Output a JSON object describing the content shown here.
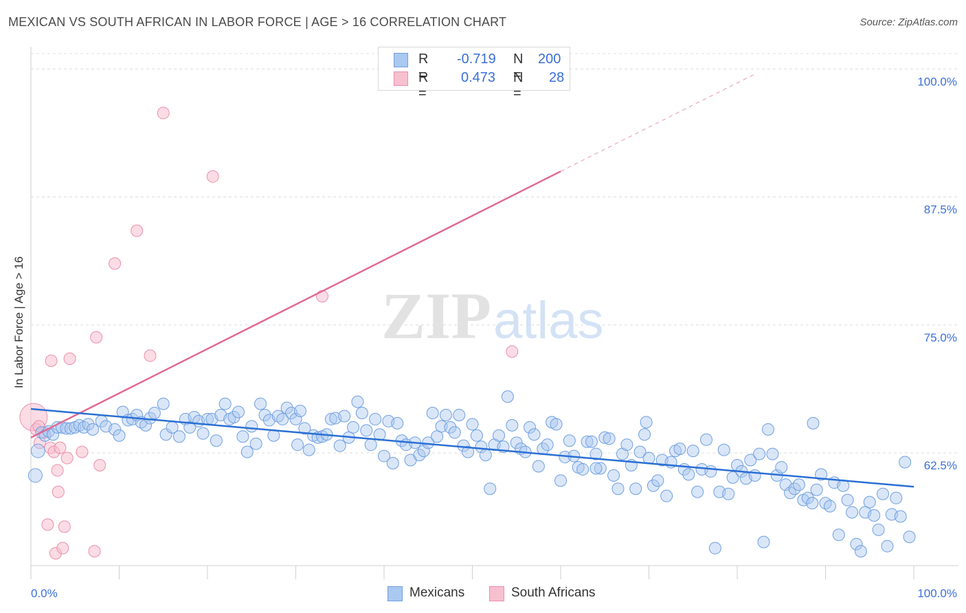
{
  "header": {
    "title": "MEXICAN VS SOUTH AFRICAN IN LABOR FORCE | AGE > 16 CORRELATION CHART",
    "source": "Source: ZipAtlas.com"
  },
  "legend": {
    "rows": [
      {
        "r_label": "R =",
        "r_value": "-0.719",
        "n_label": "N =",
        "n_value": "200"
      },
      {
        "r_label": "R =",
        "r_value": "0.473",
        "n_label": "N =",
        "n_value": "28"
      }
    ]
  },
  "bottom_legend": [
    "Mexicans",
    "South Africans"
  ],
  "colors": {
    "mexicans_fill": "#aac8f0",
    "mexicans_stroke": "#6f9fe0",
    "mexicans_line": "#2a6fd4",
    "south_africans_fill": "#f7c0d0",
    "south_africans_stroke": "#ea8fac",
    "south_africans_line": "#e06b94",
    "axis_label": "#3b6fd6",
    "grid": "#dcdcdc"
  },
  "chart_data": {
    "type": "scatter",
    "title": "MEXICAN VS SOUTH AFRICAN IN LABOR FORCE | AGE > 16 CORRELATION CHART",
    "xlabel": "",
    "ylabel": "In Labor Force | Age > 16",
    "xlim": [
      0,
      100
    ],
    "ylim": [
      51.5,
      101.5
    ],
    "x_tick_labels": [
      "0.0%",
      "100.0%"
    ],
    "y_ticks": [
      62.5,
      75.0,
      87.5,
      100.0
    ],
    "y_tick_labels": [
      "62.5%",
      "75.0%",
      "87.5%",
      "100.0%"
    ],
    "grid": true,
    "legend_position": "top-center",
    "watermark": "ZIPatlas",
    "series": [
      {
        "name": "Mexicans",
        "color": "#6f9fe0",
        "trend": {
          "x": [
            0,
            100
          ],
          "y": [
            66.8,
            59.2
          ]
        },
        "points": [
          [
            0.5,
            60.3
          ],
          [
            0.8,
            62.7
          ],
          [
            1.2,
            64.5
          ],
          [
            1.6,
            64.2
          ],
          [
            2.0,
            64.6
          ],
          [
            2.5,
            64.3
          ],
          [
            3.0,
            65.0
          ],
          [
            3.5,
            65.0
          ],
          [
            4.0,
            64.9
          ],
          [
            4.5,
            64.9
          ],
          [
            5.0,
            65.0
          ],
          [
            5.5,
            65.2
          ],
          [
            6.0,
            65.0
          ],
          [
            6.5,
            65.3
          ],
          [
            7.0,
            64.8
          ],
          [
            8.0,
            65.6
          ],
          [
            8.5,
            65.1
          ],
          [
            9.5,
            64.8
          ],
          [
            10.0,
            64.2
          ],
          [
            10.4,
            66.5
          ],
          [
            11.0,
            65.7
          ],
          [
            11.5,
            65.8
          ],
          [
            12.0,
            66.2
          ],
          [
            12.5,
            65.5
          ],
          [
            13.0,
            65.2
          ],
          [
            13.5,
            65.9
          ],
          [
            14.0,
            66.4
          ],
          [
            15.0,
            67.3
          ],
          [
            15.3,
            64.3
          ],
          [
            16.0,
            65.0
          ],
          [
            16.8,
            64.1
          ],
          [
            17.5,
            65.8
          ],
          [
            18.0,
            65.0
          ],
          [
            18.5,
            66.0
          ],
          [
            19.0,
            65.6
          ],
          [
            19.5,
            64.4
          ],
          [
            20.0,
            65.8
          ],
          [
            20.5,
            65.8
          ],
          [
            21.0,
            63.7
          ],
          [
            21.5,
            66.2
          ],
          [
            22.0,
            67.3
          ],
          [
            22.5,
            65.8
          ],
          [
            23.0,
            66.0
          ],
          [
            23.5,
            66.5
          ],
          [
            24.0,
            64.1
          ],
          [
            24.5,
            62.6
          ],
          [
            25.0,
            65.1
          ],
          [
            25.5,
            63.4
          ],
          [
            26.0,
            67.3
          ],
          [
            26.5,
            66.2
          ],
          [
            27.0,
            65.7
          ],
          [
            27.5,
            64.2
          ],
          [
            28.0,
            66.1
          ],
          [
            28.5,
            65.8
          ],
          [
            29.0,
            66.9
          ],
          [
            29.5,
            66.4
          ],
          [
            30.0,
            65.8
          ],
          [
            30.5,
            66.6
          ],
          [
            31.0,
            64.9
          ],
          [
            31.5,
            62.8
          ],
          [
            32.0,
            64.2
          ],
          [
            32.5,
            64.0
          ],
          [
            33.0,
            64.1
          ],
          [
            33.5,
            64.3
          ],
          [
            34.0,
            65.8
          ],
          [
            34.5,
            65.9
          ],
          [
            35.0,
            63.2
          ],
          [
            35.5,
            66.1
          ],
          [
            36.0,
            64.0
          ],
          [
            36.5,
            65.0
          ],
          [
            37.0,
            67.5
          ],
          [
            37.5,
            66.4
          ],
          [
            38.0,
            64.7
          ],
          [
            38.5,
            63.3
          ],
          [
            39.0,
            65.8
          ],
          [
            39.5,
            64.3
          ],
          [
            40.0,
            62.2
          ],
          [
            40.5,
            65.6
          ],
          [
            41.0,
            61.5
          ],
          [
            41.5,
            65.4
          ],
          [
            42.0,
            63.7
          ],
          [
            42.5,
            63.3
          ],
          [
            43.0,
            61.8
          ],
          [
            43.5,
            63.5
          ],
          [
            44.0,
            62.3
          ],
          [
            44.5,
            62.7
          ],
          [
            45.0,
            63.5
          ],
          [
            45.5,
            66.4
          ],
          [
            46.0,
            64.1
          ],
          [
            46.5,
            65.1
          ],
          [
            47.0,
            66.2
          ],
          [
            47.5,
            65.0
          ],
          [
            48.0,
            64.5
          ],
          [
            48.5,
            66.2
          ],
          [
            49.0,
            63.2
          ],
          [
            49.5,
            62.6
          ],
          [
            50.0,
            65.3
          ],
          [
            50.5,
            64.2
          ],
          [
            51.0,
            63.1
          ],
          [
            51.5,
            62.3
          ],
          [
            52.0,
            59.0
          ],
          [
            52.5,
            63.3
          ],
          [
            53.0,
            64.2
          ],
          [
            53.5,
            63.1
          ],
          [
            54.0,
            68.0
          ],
          [
            54.5,
            65.2
          ],
          [
            55.0,
            63.5
          ],
          [
            55.5,
            62.9
          ],
          [
            56.0,
            62.6
          ],
          [
            56.5,
            65.0
          ],
          [
            57.0,
            64.3
          ],
          [
            57.5,
            61.2
          ],
          [
            58.0,
            62.9
          ],
          [
            58.5,
            63.3
          ],
          [
            59.0,
            65.5
          ],
          [
            59.5,
            65.3
          ],
          [
            60.0,
            59.8
          ],
          [
            60.5,
            62.1
          ],
          [
            61.0,
            63.7
          ],
          [
            61.5,
            62.2
          ],
          [
            62.0,
            61.1
          ],
          [
            62.5,
            60.9
          ],
          [
            63.0,
            63.6
          ],
          [
            63.5,
            63.6
          ],
          [
            64.0,
            62.4
          ],
          [
            64.5,
            61.0
          ],
          [
            65.0,
            64.0
          ],
          [
            65.5,
            63.9
          ],
          [
            66.0,
            60.3
          ],
          [
            66.5,
            59.0
          ],
          [
            67.0,
            62.4
          ],
          [
            67.5,
            63.3
          ],
          [
            68.0,
            61.3
          ],
          [
            68.5,
            59.0
          ],
          [
            69.0,
            62.6
          ],
          [
            69.5,
            64.3
          ],
          [
            70.0,
            62.0
          ],
          [
            70.5,
            59.3
          ],
          [
            71.0,
            59.8
          ],
          [
            71.5,
            61.8
          ],
          [
            72.0,
            58.3
          ],
          [
            72.5,
            61.6
          ],
          [
            73.0,
            62.7
          ],
          [
            73.5,
            62.9
          ],
          [
            74.0,
            60.9
          ],
          [
            74.5,
            60.4
          ],
          [
            75.0,
            62.7
          ],
          [
            75.5,
            58.7
          ],
          [
            76.0,
            60.9
          ],
          [
            76.5,
            63.8
          ],
          [
            77.0,
            60.7
          ],
          [
            77.5,
            53.2
          ],
          [
            78.0,
            58.7
          ],
          [
            78.5,
            62.8
          ],
          [
            79.0,
            58.5
          ],
          [
            79.5,
            60.1
          ],
          [
            80.0,
            61.3
          ],
          [
            80.5,
            60.7
          ],
          [
            81.0,
            60.0
          ],
          [
            81.5,
            61.8
          ],
          [
            82.0,
            60.3
          ],
          [
            82.5,
            62.4
          ],
          [
            83.0,
            53.8
          ],
          [
            83.5,
            64.8
          ],
          [
            84.0,
            62.4
          ],
          [
            84.5,
            60.3
          ],
          [
            85.0,
            61.1
          ],
          [
            85.5,
            59.4
          ],
          [
            86.0,
            58.6
          ],
          [
            86.5,
            59.0
          ],
          [
            87.0,
            59.4
          ],
          [
            87.5,
            57.9
          ],
          [
            88.0,
            58.1
          ],
          [
            88.5,
            57.6
          ],
          [
            89.0,
            58.9
          ],
          [
            89.5,
            60.4
          ],
          [
            90.0,
            57.6
          ],
          [
            90.5,
            57.3
          ],
          [
            91.0,
            59.6
          ],
          [
            91.5,
            54.5
          ],
          [
            92.0,
            59.3
          ],
          [
            92.5,
            57.9
          ],
          [
            93.0,
            56.7
          ],
          [
            93.5,
            53.6
          ],
          [
            94.0,
            52.9
          ],
          [
            94.5,
            56.7
          ],
          [
            95.0,
            57.7
          ],
          [
            95.5,
            56.4
          ],
          [
            96.0,
            55.0
          ],
          [
            96.5,
            58.5
          ],
          [
            97.0,
            53.4
          ],
          [
            97.5,
            56.5
          ],
          [
            98.0,
            58.1
          ],
          [
            98.5,
            56.3
          ],
          [
            99.0,
            61.6
          ],
          [
            99.5,
            54.3
          ],
          [
            88.6,
            65.4
          ],
          [
            69.7,
            65.5
          ],
          [
            64.0,
            61.0
          ],
          [
            30.2,
            63.3
          ]
        ]
      },
      {
        "name": "South Africans",
        "color": "#ea8fac",
        "trend": {
          "x": [
            0,
            60
          ],
          "y": [
            64.0,
            90.0
          ],
          "dashed_to": {
            "x": 82,
            "y": 99.5
          }
        },
        "points": [
          [
            0.3,
            66.0
          ],
          [
            0.6,
            64.8
          ],
          [
            1.0,
            63.5
          ],
          [
            1.5,
            64.5
          ],
          [
            2.2,
            63.0
          ],
          [
            2.3,
            71.5
          ],
          [
            2.6,
            62.6
          ],
          [
            2.8,
            52.7
          ],
          [
            3.0,
            60.8
          ],
          [
            3.1,
            58.7
          ],
          [
            3.3,
            63.0
          ],
          [
            3.6,
            53.2
          ],
          [
            3.8,
            55.3
          ],
          [
            4.1,
            62.0
          ],
          [
            4.4,
            71.7
          ],
          [
            5.8,
            62.6
          ],
          [
            7.2,
            52.9
          ],
          [
            7.4,
            73.8
          ],
          [
            7.8,
            61.3
          ],
          [
            9.5,
            81.0
          ],
          [
            12.0,
            84.2
          ],
          [
            13.5,
            72.0
          ],
          [
            15.0,
            95.7
          ],
          [
            20.6,
            89.5
          ],
          [
            33.0,
            77.8
          ],
          [
            54.5,
            72.4
          ],
          [
            1.9,
            55.5
          ],
          [
            0.9,
            65.1
          ]
        ]
      }
    ]
  }
}
